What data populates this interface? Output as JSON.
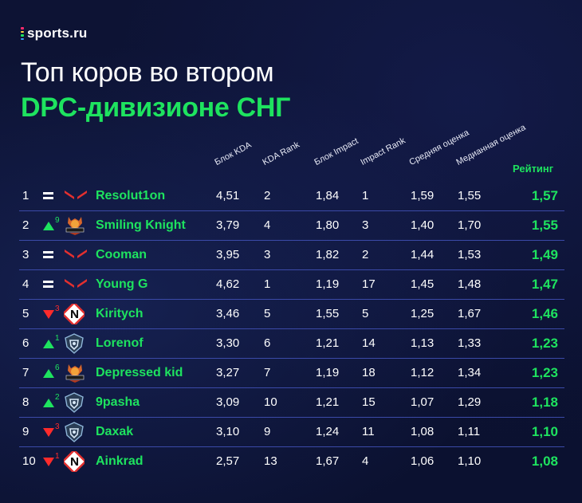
{
  "brand": {
    "name": "sports.ru",
    "colors": [
      "#ff2a6d",
      "#ffd23f",
      "#1ee35f",
      "#3aa0ff"
    ]
  },
  "title": {
    "line1": "Топ коров во втором",
    "line2": "DPC-дивизионе СНГ"
  },
  "columns": {
    "kda": "Блок KDA",
    "kda_rank": "KDA Rank",
    "impact": "Блок Impact",
    "impact_rank": "Impact Rank",
    "avg": "Средняя оценка",
    "median": "Медианная оценка",
    "rating": "Рейтинг"
  },
  "colors": {
    "accent": "#1ee35f",
    "down": "#ff2b2b",
    "background": "#0b1130"
  },
  "rows": [
    {
      "rank": "1",
      "move": "same",
      "delta": "",
      "team_logo": "virtus-pro-logo",
      "name": "Resolut1on",
      "kda": "4,51",
      "kda_rank": "2",
      "impact": "1,84",
      "impact_rank": "1",
      "avg": "1,59",
      "median": "1,55",
      "rating": "1,57"
    },
    {
      "rank": "2",
      "move": "up",
      "delta": "9",
      "team_logo": "hellraisers-logo",
      "name": "Smiling Knight",
      "kda": "3,79",
      "kda_rank": "4",
      "impact": "1,80",
      "impact_rank": "3",
      "avg": "1,40",
      "median": "1,70",
      "rating": "1,55"
    },
    {
      "rank": "3",
      "move": "same",
      "delta": "",
      "team_logo": "virtus-pro-logo",
      "name": "Cooman",
      "kda": "3,95",
      "kda_rank": "3",
      "impact": "1,82",
      "impact_rank": "2",
      "avg": "1,44",
      "median": "1,53",
      "rating": "1,49"
    },
    {
      "rank": "4",
      "move": "same",
      "delta": "",
      "team_logo": "virtus-pro-logo",
      "name": "Young G",
      "kda": "4,62",
      "kda_rank": "1",
      "impact": "1,19",
      "impact_rank": "17",
      "avg": "1,45",
      "median": "1,48",
      "rating": "1,47"
    },
    {
      "rank": "5",
      "move": "down",
      "delta": "3",
      "team_logo": "nemiga-logo",
      "name": "Kiritych",
      "kda": "3,46",
      "kda_rank": "5",
      "impact": "1,55",
      "impact_rank": "5",
      "avg": "1,25",
      "median": "1,67",
      "rating": "1,46"
    },
    {
      "rank": "6",
      "move": "up",
      "delta": "1",
      "team_logo": "shield-team-logo",
      "name": "Lorenof",
      "kda": "3,30",
      "kda_rank": "6",
      "impact": "1,21",
      "impact_rank": "14",
      "avg": "1,13",
      "median": "1,33",
      "rating": "1,23"
    },
    {
      "rank": "7",
      "move": "up",
      "delta": "6",
      "team_logo": "hellraisers-logo",
      "name": "Depressed kid",
      "kda": "3,27",
      "kda_rank": "7",
      "impact": "1,19",
      "impact_rank": "18",
      "avg": "1,12",
      "median": "1,34",
      "rating": "1,23"
    },
    {
      "rank": "8",
      "move": "up",
      "delta": "2",
      "team_logo": "shield-team-logo",
      "name": "9pasha",
      "kda": "3,09",
      "kda_rank": "10",
      "impact": "1,21",
      "impact_rank": "15",
      "avg": "1,07",
      "median": "1,29",
      "rating": "1,18"
    },
    {
      "rank": "9",
      "move": "down",
      "delta": "3",
      "team_logo": "shield-team-logo",
      "name": "Daxak",
      "kda": "3,10",
      "kda_rank": "9",
      "impact": "1,24",
      "impact_rank": "11",
      "avg": "1,08",
      "median": "1,11",
      "rating": "1,10"
    },
    {
      "rank": "10",
      "move": "down",
      "delta": "1",
      "team_logo": "nemiga-logo",
      "name": "Ainkrad",
      "kda": "2,57",
      "kda_rank": "13",
      "impact": "1,67",
      "impact_rank": "4",
      "avg": "1,06",
      "median": "1,10",
      "rating": "1,08"
    }
  ]
}
